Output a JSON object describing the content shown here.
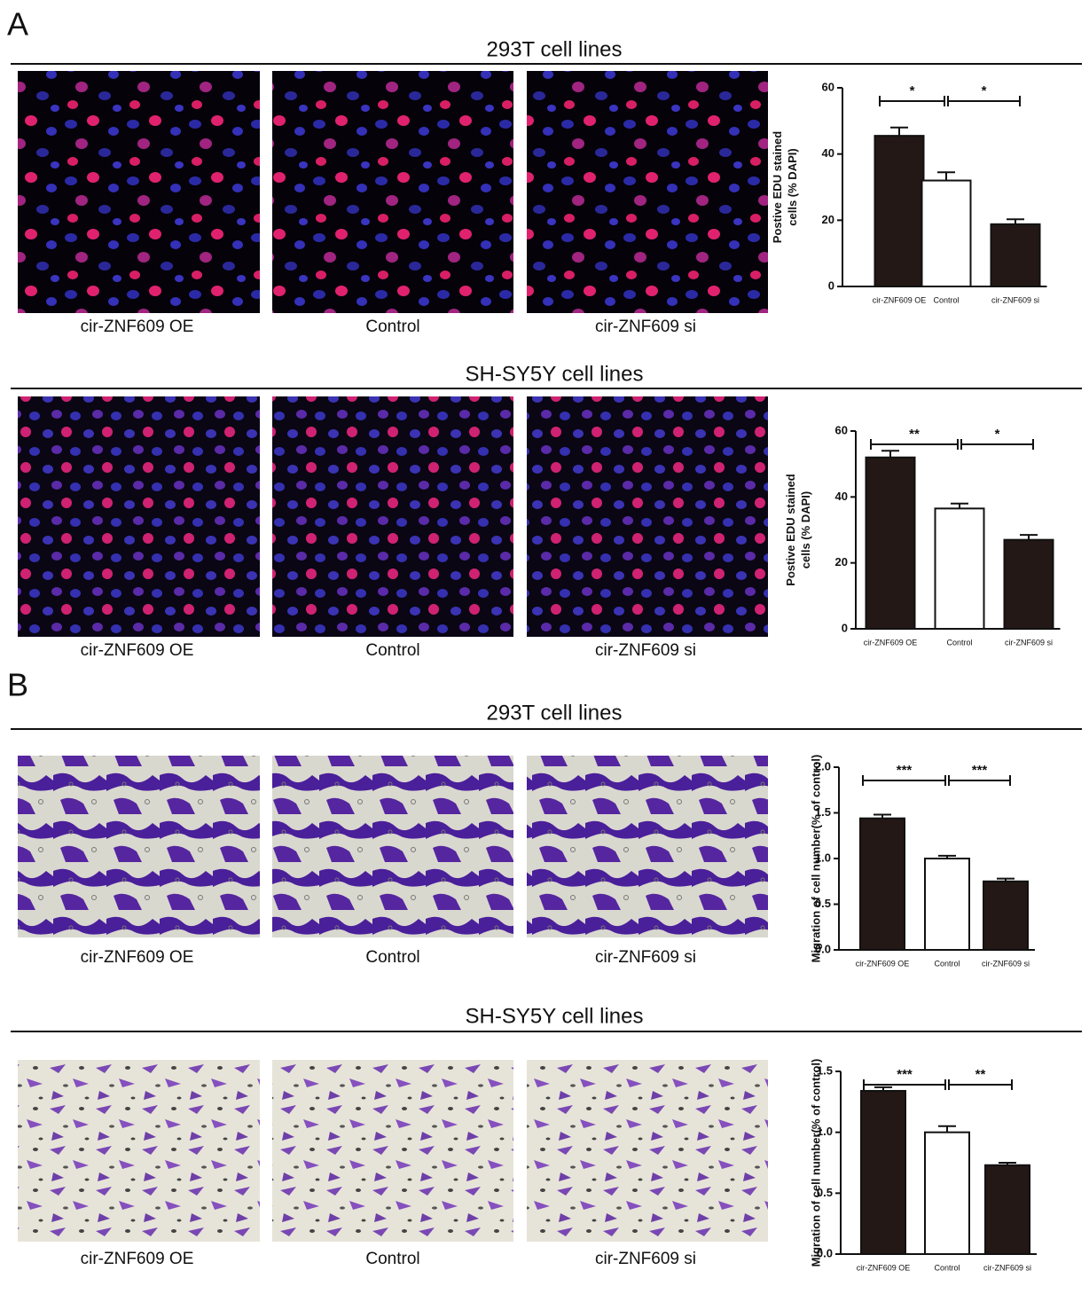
{
  "figure": {
    "panels": [
      {
        "label": "A",
        "sections": [
          {
            "title": "293T cell lines",
            "captions": [
              "cir-ZNF609 OE",
              "Control",
              "cir-ZNF609 si"
            ]
          },
          {
            "title": "SH-SY5Y cell lines",
            "captions": [
              "cir-ZNF609 OE",
              "Control",
              "cir-ZNF609 si"
            ]
          }
        ]
      },
      {
        "label": "B",
        "sections": [
          {
            "title": "293T cell lines",
            "captions": [
              "cir-ZNF609 OE",
              "Control",
              "cir-ZNF609 si"
            ]
          },
          {
            "title": "SH-SY5Y cell lines",
            "captions": [
              "cir-ZNF609 OE",
              "Control",
              "cir-ZNF609 si"
            ]
          }
        ]
      }
    ]
  },
  "chart_data": [
    {
      "type": "bar",
      "ylabel": [
        "Postive EDU stained",
        "cells (% DAPI)"
      ],
      "categories": [
        "cir-ZNF609 OE",
        "Control",
        "cir-ZNF609 si"
      ],
      "values": [
        45.5,
        32,
        18.8
      ],
      "errors": [
        2.5,
        2.5,
        1.5
      ],
      "colors": [
        "#231815",
        "#ffffff",
        "#231815"
      ],
      "ylim": [
        0,
        60
      ],
      "yticks": [
        0,
        20,
        40,
        60
      ],
      "annotations": [
        "*",
        "*"
      ]
    },
    {
      "type": "bar",
      "ylabel": [
        "Postive EDU stained",
        "cells (% DAPI)"
      ],
      "categories": [
        "cir-ZNF609 OE",
        "Control",
        "cir-ZNF609 si"
      ],
      "values": [
        52,
        36.5,
        27
      ],
      "errors": [
        2,
        1.5,
        1.5
      ],
      "colors": [
        "#231815",
        "#ffffff",
        "#231815"
      ],
      "ylim": [
        0,
        60
      ],
      "yticks": [
        0,
        20,
        40,
        60
      ],
      "annotations": [
        "**",
        "*"
      ]
    },
    {
      "type": "bar",
      "ylabel": [
        "Migration of cell number(% of control)"
      ],
      "categories": [
        "cir-ZNF609 OE",
        "Control",
        "cir-ZNF609 si"
      ],
      "values": [
        1.44,
        1.0,
        0.75
      ],
      "errors": [
        0.04,
        0.03,
        0.03
      ],
      "colors": [
        "#231815",
        "#ffffff",
        "#231815"
      ],
      "ylim": [
        0,
        2
      ],
      "yticks": [
        {
          "value": 0,
          "label": "0.0"
        },
        0.5,
        {
          "value": 1,
          "label": "1.0"
        },
        1.5,
        {
          "value": 2,
          "label": "2.0"
        }
      ],
      "annotations": [
        "***",
        "***"
      ]
    },
    {
      "type": "bar",
      "ylabel": [
        "Migration of cell number(% of control)"
      ],
      "categories": [
        "cir-ZNF609 OE",
        "Control",
        "cir-ZNF609 si"
      ],
      "values": [
        1.34,
        1.0,
        0.73
      ],
      "errors": [
        0.03,
        0.05,
        0.02
      ],
      "colors": [
        "#231815",
        "#ffffff",
        "#231815"
      ],
      "ylim": [
        0,
        1.5
      ],
      "yticks": [
        {
          "value": 0,
          "label": "0.0"
        },
        0.5,
        {
          "value": 1,
          "label": "1.0"
        },
        1.5
      ],
      "annotations": [
        "***",
        "**"
      ]
    }
  ]
}
